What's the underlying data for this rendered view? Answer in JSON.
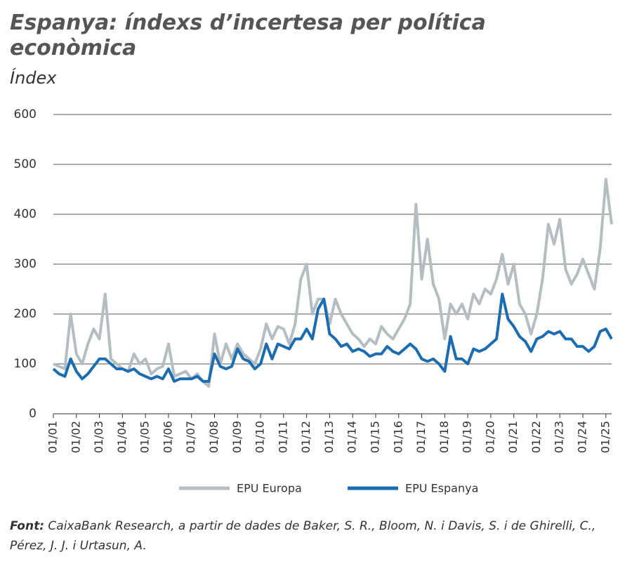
{
  "chart_data": {
    "type": "line",
    "title": "Espanya: índexs d’incertesa per política econòmica",
    "subtitle": "Índex",
    "x": [
      "01/01",
      "04/01",
      "07/01",
      "10/01",
      "01/02",
      "04/02",
      "07/02",
      "10/02",
      "01/03",
      "04/03",
      "07/03",
      "10/03",
      "01/04",
      "04/04",
      "07/04",
      "10/04",
      "01/05",
      "04/05",
      "07/05",
      "10/05",
      "01/06",
      "04/06",
      "07/06",
      "10/06",
      "01/07",
      "04/07",
      "07/07",
      "10/07",
      "01/08",
      "04/08",
      "07/08",
      "10/08",
      "01/09",
      "04/09",
      "07/09",
      "10/09",
      "01/10",
      "04/10",
      "07/10",
      "10/10",
      "01/11",
      "04/11",
      "07/11",
      "10/11",
      "01/12",
      "04/12",
      "07/12",
      "10/12",
      "01/13",
      "04/13",
      "07/13",
      "10/13",
      "01/14",
      "04/14",
      "07/14",
      "10/14",
      "01/15",
      "04/15",
      "07/15",
      "10/15",
      "01/16",
      "04/16",
      "07/16",
      "10/16",
      "01/17",
      "04/17",
      "07/17",
      "10/17",
      "01/18",
      "04/18",
      "07/18",
      "10/18",
      "01/19",
      "04/19",
      "07/19",
      "10/19",
      "01/20",
      "04/20",
      "07/20",
      "10/20",
      "01/21",
      "04/21",
      "07/21",
      "10/21",
      "01/22",
      "04/22",
      "07/22",
      "10/22",
      "01/23",
      "04/23",
      "07/23",
      "10/23",
      "01/24",
      "04/24",
      "07/24",
      "10/24",
      "01/25",
      "04/25"
    ],
    "series": [
      {
        "name": "EPU Europa",
        "color": "#b4bdc1",
        "values": [
          100,
          95,
          90,
          200,
          120,
          100,
          140,
          170,
          150,
          240,
          110,
          100,
          90,
          85,
          120,
          100,
          110,
          80,
          90,
          95,
          140,
          75,
          80,
          85,
          70,
          80,
          65,
          55,
          160,
          100,
          140,
          110,
          140,
          120,
          110,
          100,
          130,
          180,
          150,
          175,
          170,
          140,
          180,
          270,
          300,
          200,
          230,
          230,
          180,
          230,
          200,
          180,
          160,
          150,
          135,
          150,
          140,
          175,
          160,
          150,
          170,
          190,
          220,
          420,
          270,
          350,
          260,
          230,
          150,
          220,
          200,
          220,
          190,
          240,
          220,
          250,
          240,
          270,
          320,
          260,
          300,
          220,
          200,
          160,
          200,
          270,
          380,
          340,
          390,
          290,
          260,
          280,
          310,
          280,
          250,
          330,
          470,
          380
        ]
      },
      {
        "name": "EPU Espanya",
        "color": "#1b6db3",
        "values": [
          90,
          80,
          75,
          110,
          85,
          70,
          80,
          95,
          110,
          110,
          100,
          90,
          90,
          85,
          90,
          80,
          75,
          70,
          75,
          70,
          90,
          65,
          70,
          70,
          70,
          75,
          65,
          65,
          120,
          95,
          90,
          95,
          130,
          110,
          105,
          90,
          100,
          140,
          110,
          140,
          135,
          130,
          150,
          150,
          170,
          150,
          210,
          230,
          160,
          150,
          135,
          140,
          125,
          130,
          125,
          115,
          120,
          120,
          135,
          125,
          120,
          130,
          140,
          130,
          110,
          105,
          110,
          100,
          85,
          155,
          110,
          110,
          100,
          130,
          125,
          130,
          140,
          150,
          240,
          190,
          175,
          155,
          145,
          125,
          150,
          155,
          165,
          160,
          165,
          150,
          150,
          135,
          135,
          125,
          135,
          165,
          170,
          150
        ]
      }
    ],
    "xlim": [
      "01/01",
      "04/25"
    ],
    "xticks": [
      "01/01",
      "01/02",
      "01/03",
      "01/04",
      "01/05",
      "01/06",
      "01/07",
      "01/08",
      "01/09",
      "01/10",
      "01/11",
      "01/12",
      "01/13",
      "01/14",
      "01/15",
      "01/16",
      "01/17",
      "01/18",
      "01/19",
      "01/20",
      "01/21",
      "01/22",
      "01/23",
      "01/24",
      "01/25"
    ],
    "ylim": [
      0,
      600
    ],
    "yticks": [
      0,
      100,
      200,
      300,
      400,
      500,
      600
    ],
    "grid": true,
    "source_label": "Font:",
    "source": "CaixaBank Research, a partir de dades de Baker, S. R., Bloom, N. i Davis, S. i de Ghirelli, C., Pérez, J. J. i Urtasun, A."
  }
}
